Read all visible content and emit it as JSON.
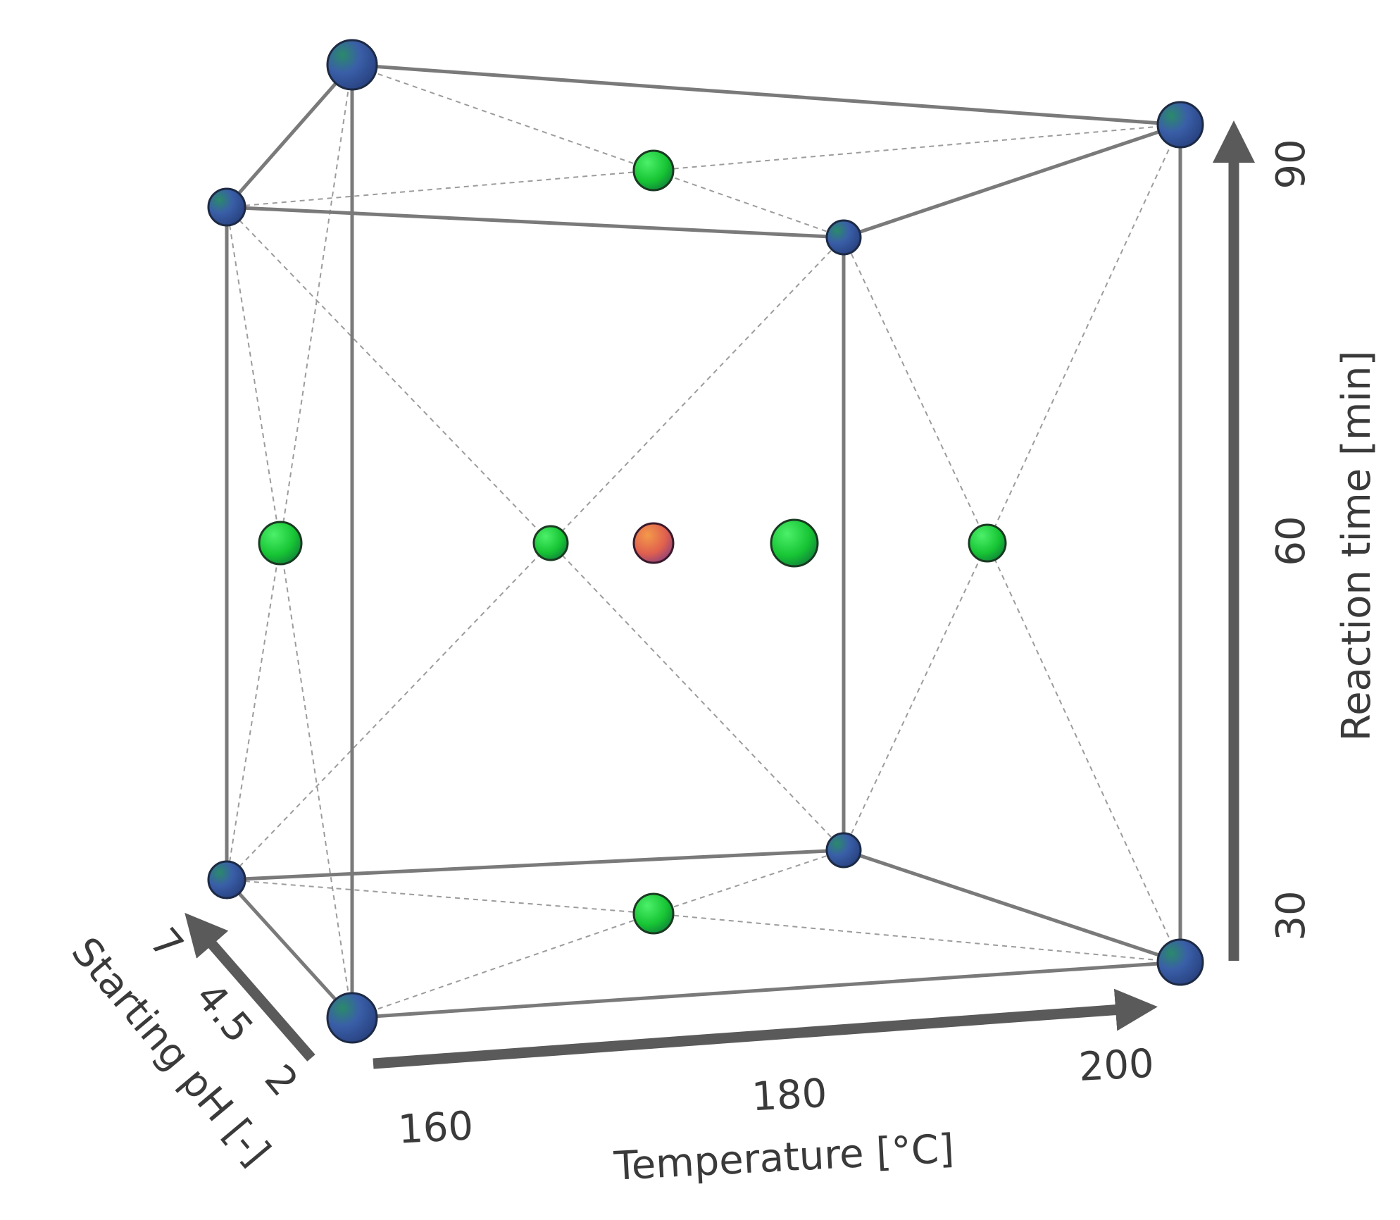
{
  "axes": {
    "temperature": {
      "label": "Temperature [°C]",
      "ticks": [
        "160",
        "180",
        "200"
      ]
    },
    "ph": {
      "label": "Starting pH [-]",
      "ticks": [
        "7",
        "4.5",
        "2"
      ]
    },
    "time": {
      "label": "Reaction time [min]",
      "ticks": [
        "30",
        "60",
        "90"
      ]
    }
  },
  "colors": {
    "factorial_point": "#2f4f9a",
    "axial_point": "#22c43a",
    "center_point": "#e06a4a",
    "edge": "#7a7a7a",
    "arrow": "#5a5a5a"
  },
  "design_points": [
    {
      "type": "factorial",
      "temperature": 160,
      "ph": 2,
      "time": 90
    },
    {
      "type": "factorial",
      "temperature": 200,
      "ph": 7,
      "time": 90
    },
    {
      "type": "factorial",
      "temperature": 160,
      "ph": 7,
      "time": 90
    },
    {
      "type": "factorial",
      "temperature": 200,
      "ph": 2,
      "time": 90
    },
    {
      "type": "factorial",
      "temperature": 160,
      "ph": 7,
      "time": 30
    },
    {
      "type": "factorial",
      "temperature": 200,
      "ph": 7,
      "time": 30
    },
    {
      "type": "factorial",
      "temperature": 160,
      "ph": 2,
      "time": 30
    },
    {
      "type": "factorial",
      "temperature": 200,
      "ph": 2,
      "time": 30
    },
    {
      "type": "axial",
      "temperature": 180,
      "ph": 4.5,
      "time": 90
    },
    {
      "type": "axial",
      "temperature": 180,
      "ph": 4.5,
      "time": 30
    },
    {
      "type": "axial",
      "temperature": 160,
      "ph": 4.5,
      "time": 60
    },
    {
      "type": "axial",
      "temperature": 200,
      "ph": 4.5,
      "time": 60
    },
    {
      "type": "axial",
      "temperature": 180,
      "ph": 7,
      "time": 60
    },
    {
      "type": "axial",
      "temperature": 180,
      "ph": 2,
      "time": 60
    },
    {
      "type": "center",
      "temperature": 180,
      "ph": 4.5,
      "time": 60
    }
  ]
}
